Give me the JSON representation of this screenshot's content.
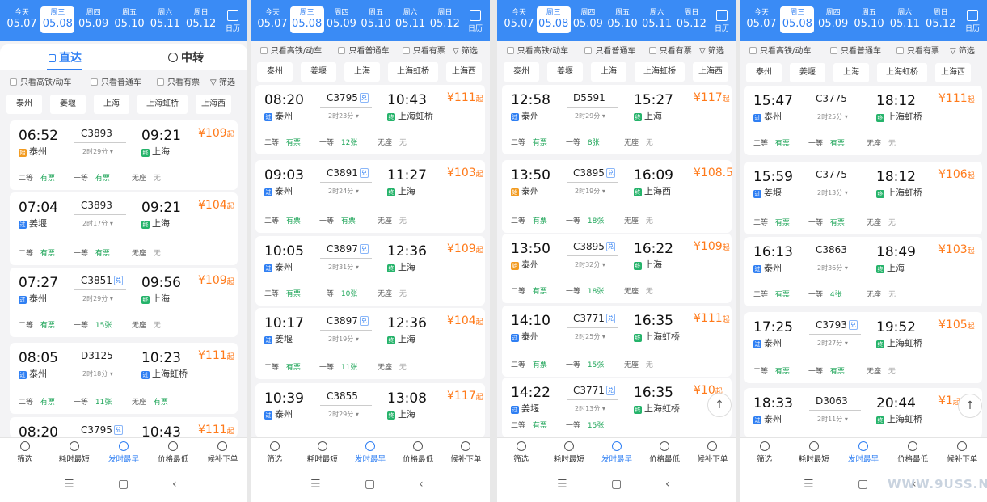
{
  "dates": [
    {
      "weekday": "今天",
      "date": "05.07",
      "selected": false
    },
    {
      "weekday": "周三",
      "date": "05.08",
      "selected": true
    },
    {
      "weekday": "周四",
      "date": "05.09",
      "selected": false
    },
    {
      "weekday": "周五",
      "date": "05.10",
      "selected": false
    },
    {
      "weekday": "周六",
      "date": "05.11",
      "selected": false
    },
    {
      "weekday": "周日",
      "date": "05.12",
      "selected": false
    }
  ],
  "calendar_label": "日历",
  "tabs": {
    "direct": "直达",
    "transfer": "中转"
  },
  "filters": [
    "只看高铁/动车",
    "只看普通车",
    "只看有票"
  ],
  "filter_btn": "筛选",
  "stations": [
    "泰州",
    "姜堰",
    "上海",
    "上海虹桥",
    "上海西"
  ],
  "price_suffix": "起",
  "seat_labels": {
    "second": "二等",
    "first": "一等",
    "standing": "无座"
  },
  "flag_tag": "兑",
  "bottom_tabs": [
    "筛选",
    "耗时最短",
    "发时最早",
    "价格最低",
    "候补下单"
  ],
  "panels": [
    {
      "trains": [
        {
          "dep": "06:52",
          "no": "C3893",
          "fx": false,
          "arr": "09:21",
          "from": "泰州",
          "from_type": "shi",
          "dur": "2时29分",
          "to": "上海",
          "to_type": "zhong",
          "price": "¥109",
          "second": "有票",
          "first": "有票",
          "standing": "无"
        },
        {
          "dep": "07:04",
          "no": "C3893",
          "fx": false,
          "arr": "09:21",
          "from": "姜堰",
          "from_type": "guo",
          "dur": "2时17分",
          "to": "上海",
          "to_type": "zhong",
          "price": "¥104",
          "second": "有票",
          "first": "有票",
          "standing": "无"
        },
        {
          "dep": "07:27",
          "no": "C3851",
          "fx": true,
          "arr": "09:56",
          "from": "泰州",
          "from_type": "guo",
          "dur": "2时29分",
          "to": "上海",
          "to_type": "zhong",
          "price": "¥109",
          "second": "有票",
          "first": "15张",
          "standing": "无"
        },
        {
          "dep": "08:05",
          "no": "D3125",
          "fx": false,
          "arr": "10:23",
          "from": "泰州",
          "from_type": "guo",
          "dur": "2时18分",
          "to": "上海虹桥",
          "to_type": "guo",
          "price": "¥111",
          "second": "有票",
          "first": "11张",
          "standing": "有票"
        },
        {
          "dep": "08:20",
          "no": "C3795",
          "fx": true,
          "arr": "10:43",
          "from": "",
          "from_type": "",
          "dur": "",
          "to": "",
          "to_type": "",
          "price": "¥111",
          "second": "",
          "first": "",
          "standing": ""
        }
      ]
    },
    {
      "trains": [
        {
          "dep": "08:20",
          "no": "C3795",
          "fx": true,
          "arr": "10:43",
          "from": "泰州",
          "from_type": "guo",
          "dur": "2时23分",
          "to": "上海虹桥",
          "to_type": "zhong",
          "price": "¥111",
          "second": "有票",
          "first": "12张",
          "standing": "无"
        },
        {
          "dep": "09:03",
          "no": "C3891",
          "fx": true,
          "arr": "11:27",
          "from": "泰州",
          "from_type": "guo",
          "dur": "2时24分",
          "to": "上海",
          "to_type": "zhong",
          "price": "¥103",
          "second": "有票",
          "first": "有票",
          "standing": "无"
        },
        {
          "dep": "10:05",
          "no": "C3897",
          "fx": true,
          "arr": "12:36",
          "from": "泰州",
          "from_type": "guo",
          "dur": "2时31分",
          "to": "上海",
          "to_type": "zhong",
          "price": "¥109",
          "second": "有票",
          "first": "10张",
          "standing": "无"
        },
        {
          "dep": "10:17",
          "no": "C3897",
          "fx": true,
          "arr": "12:36",
          "from": "姜堰",
          "from_type": "guo",
          "dur": "2时19分",
          "to": "上海",
          "to_type": "zhong",
          "price": "¥104",
          "second": "有票",
          "first": "11张",
          "standing": "无"
        },
        {
          "dep": "10:39",
          "no": "C3855",
          "fx": false,
          "arr": "13:08",
          "from": "泰州",
          "from_type": "guo",
          "dur": "2时29分",
          "to": "上海",
          "to_type": "zhong",
          "price": "¥117",
          "second": "",
          "first": "",
          "standing": ""
        }
      ]
    },
    {
      "trains": [
        {
          "dep": "12:58",
          "no": "D5591",
          "fx": false,
          "arr": "15:27",
          "from": "泰州",
          "from_type": "guo",
          "dur": "2时29分",
          "to": "上海",
          "to_type": "zhong",
          "price": "¥117",
          "second": "有票",
          "first": "8张",
          "standing": "无"
        },
        {
          "dep": "13:50",
          "no": "C3895",
          "fx": true,
          "arr": "16:09",
          "from": "泰州",
          "from_type": "shi",
          "dur": "2时19分",
          "to": "上海西",
          "to_type": "zhong",
          "price": "¥108.5",
          "second": "有票",
          "first": "18张",
          "standing": "无"
        },
        {
          "dep": "13:50",
          "no": "C3895",
          "fx": true,
          "arr": "16:22",
          "from": "泰州",
          "from_type": "shi",
          "dur": "2时32分",
          "to": "上海",
          "to_type": "zhong",
          "price": "¥109",
          "second": "有票",
          "first": "18张",
          "standing": "无"
        },
        {
          "dep": "14:10",
          "no": "C3771",
          "fx": true,
          "arr": "16:35",
          "from": "泰州",
          "from_type": "guo",
          "dur": "2时25分",
          "to": "上海虹桥",
          "to_type": "zhong",
          "price": "¥111",
          "second": "有票",
          "first": "15张",
          "standing": "无"
        },
        {
          "dep": "14:22",
          "no": "C3771",
          "fx": true,
          "arr": "16:35",
          "from": "姜堰",
          "from_type": "guo",
          "dur": "2时13分",
          "to": "上海虹桥",
          "to_type": "zhong",
          "price": "¥10",
          "second": "有票",
          "first": "15张",
          "standing": ""
        }
      ]
    },
    {
      "trains": [
        {
          "dep": "15:47",
          "no": "C3775",
          "fx": false,
          "arr": "18:12",
          "from": "泰州",
          "from_type": "guo",
          "dur": "2时25分",
          "to": "上海虹桥",
          "to_type": "zhong",
          "price": "¥111",
          "second": "有票",
          "first": "有票",
          "standing": "无"
        },
        {
          "dep": "15:59",
          "no": "C3775",
          "fx": false,
          "arr": "18:12",
          "from": "姜堰",
          "from_type": "guo",
          "dur": "2时13分",
          "to": "上海虹桥",
          "to_type": "zhong",
          "price": "¥106",
          "second": "有票",
          "first": "有票",
          "standing": "无"
        },
        {
          "dep": "16:13",
          "no": "C3863",
          "fx": false,
          "arr": "18:49",
          "from": "泰州",
          "from_type": "guo",
          "dur": "2时36分",
          "to": "上海",
          "to_type": "zhong",
          "price": "¥103",
          "second": "有票",
          "first": "4张",
          "standing": "无"
        },
        {
          "dep": "17:25",
          "no": "C3793",
          "fx": true,
          "arr": "19:52",
          "from": "泰州",
          "from_type": "guo",
          "dur": "2时27分",
          "to": "上海虹桥",
          "to_type": "zhong",
          "price": "¥105",
          "second": "有票",
          "first": "有票",
          "standing": "无"
        },
        {
          "dep": "18:33",
          "no": "D3063",
          "fx": false,
          "arr": "20:44",
          "from": "泰州",
          "from_type": "guo",
          "dur": "2时11分",
          "to": "上海虹桥",
          "to_type": "zhong",
          "price": "¥1",
          "second": "",
          "first": "",
          "standing": ""
        }
      ]
    }
  ],
  "station_tags": {
    "guo": "过",
    "shi": "始",
    "zhong": "终"
  },
  "scroll_top_icon": "↑",
  "watermark": "WWW.9USS.NET"
}
